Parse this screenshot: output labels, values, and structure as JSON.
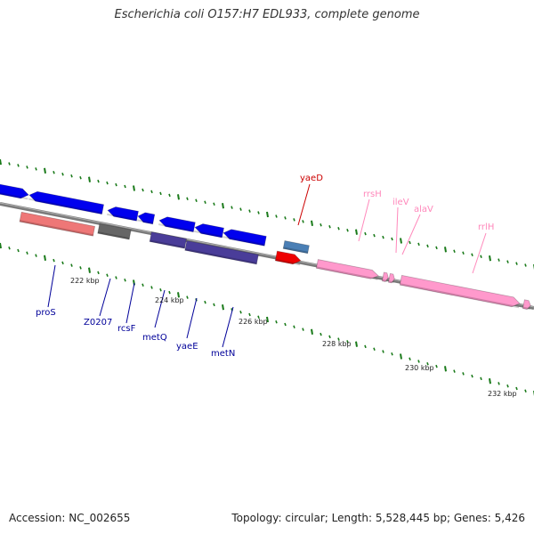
{
  "title": "Escherichia coli O157:H7 EDL933, complete genome",
  "footer": {
    "accession": "Accession: NC_002655",
    "summary": "Topology: circular; Length: 5,528,445 bp; Genes: 5,426"
  },
  "colors": {
    "backbone": "#8a8a8a",
    "tick": "#1a7a1a",
    "cds": "#0000ee",
    "cds_dark": "#4a3d99",
    "rrna": "#ff99cc",
    "trna": "#ff99cc",
    "gene": "#ee7777",
    "misc": "#666666",
    "steel": "#4a7fb5",
    "red": "#ee0000",
    "blue_label": "#000099",
    "pink_label": "#ff88bb",
    "red_label": "#cc0000"
  },
  "ticks": [
    {
      "label": "222 kbp"
    },
    {
      "label": "224 kbp"
    },
    {
      "label": "226 kbp"
    },
    {
      "label": "228 kbp"
    },
    {
      "label": "230 kbp"
    },
    {
      "label": "232 kbp"
    }
  ],
  "labels": [
    {
      "text": "proS",
      "color": "blue_label"
    },
    {
      "text": "Z0207",
      "color": "blue_label"
    },
    {
      "text": "rcsF",
      "color": "blue_label"
    },
    {
      "text": "metQ",
      "color": "blue_label"
    },
    {
      "text": "yaeE",
      "color": "blue_label"
    },
    {
      "text": "metN",
      "color": "blue_label"
    },
    {
      "text": "yaeD",
      "color": "red_label"
    },
    {
      "text": "rrsH",
      "color": "pink_label"
    },
    {
      "text": "ileV",
      "color": "pink_label"
    },
    {
      "text": "alaV",
      "color": "pink_label"
    },
    {
      "text": "rrlH",
      "color": "pink_label"
    }
  ]
}
